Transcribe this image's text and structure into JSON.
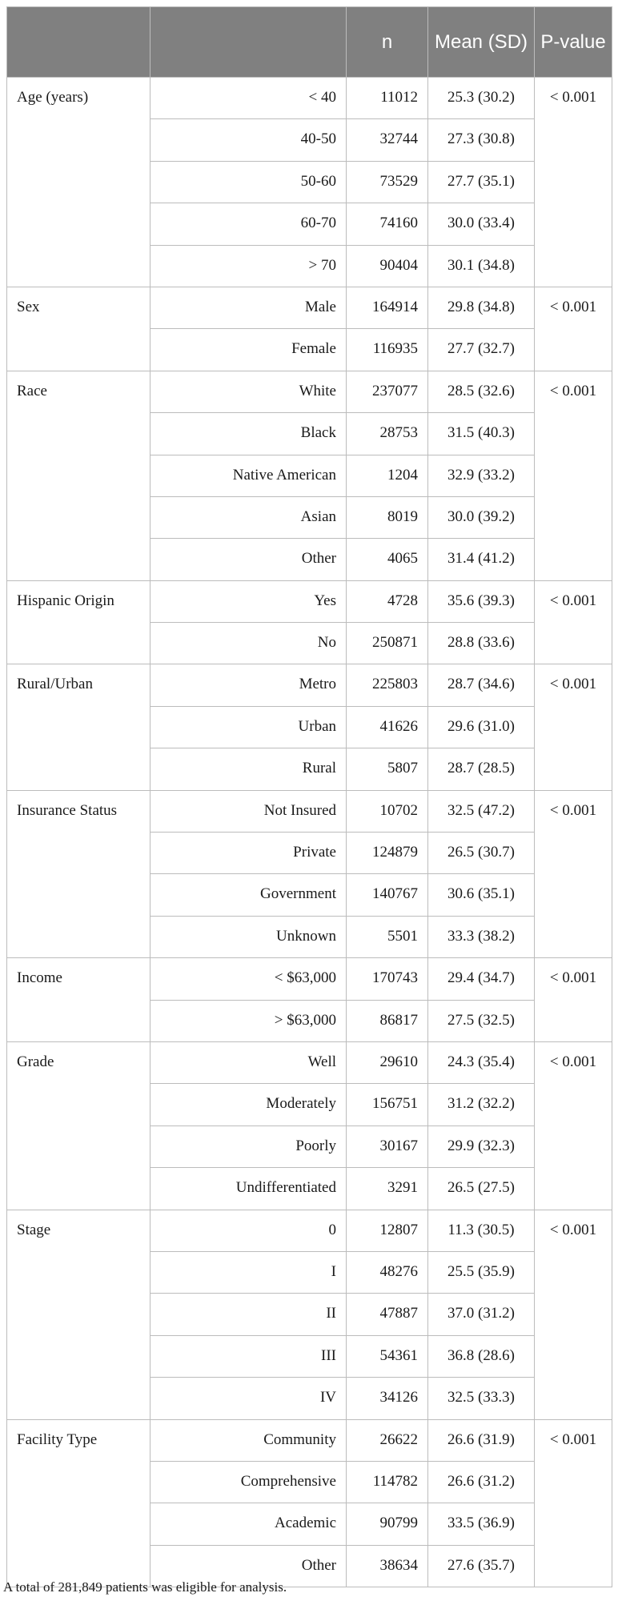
{
  "table": {
    "headers": [
      "",
      "",
      "n",
      "Mean (SD)",
      "P-value"
    ],
    "groups": [
      {
        "name": "Age (years)",
        "p": "< 0.001",
        "rows": [
          {
            "level": "< 40",
            "n": "11012",
            "mean": "25.3 (30.2)"
          },
          {
            "level": "40-50",
            "n": "32744",
            "mean": "27.3 (30.8)"
          },
          {
            "level": "50-60",
            "n": "73529",
            "mean": "27.7 (35.1)"
          },
          {
            "level": "60-70",
            "n": "74160",
            "mean": "30.0 (33.4)"
          },
          {
            "level": "> 70",
            "n": "90404",
            "mean": "30.1 (34.8)"
          }
        ]
      },
      {
        "name": "Sex",
        "p": "< 0.001",
        "rows": [
          {
            "level": "Male",
            "n": "164914",
            "mean": "29.8 (34.8)"
          },
          {
            "level": "Female",
            "n": "116935",
            "mean": "27.7 (32.7)"
          }
        ]
      },
      {
        "name": "Race",
        "p": "< 0.001",
        "rows": [
          {
            "level": "White",
            "n": "237077",
            "mean": "28.5 (32.6)"
          },
          {
            "level": "Black",
            "n": "28753",
            "mean": "31.5 (40.3)"
          },
          {
            "level": "Native American",
            "n": "1204",
            "mean": "32.9 (33.2)"
          },
          {
            "level": "Asian",
            "n": "8019",
            "mean": "30.0 (39.2)"
          },
          {
            "level": "Other",
            "n": "4065",
            "mean": "31.4 (41.2)"
          }
        ]
      },
      {
        "name": "Hispanic Origin",
        "p": "< 0.001",
        "rows": [
          {
            "level": "Yes",
            "n": "4728",
            "mean": "35.6 (39.3)"
          },
          {
            "level": "No",
            "n": "250871",
            "mean": "28.8 (33.6)"
          }
        ]
      },
      {
        "name": "Rural/Urban",
        "p": "< 0.001",
        "rows": [
          {
            "level": "Metro",
            "n": "225803",
            "mean": "28.7 (34.6)"
          },
          {
            "level": "Urban",
            "n": "41626",
            "mean": "29.6 (31.0)"
          },
          {
            "level": "Rural",
            "n": "5807",
            "mean": "28.7 (28.5)"
          }
        ]
      },
      {
        "name": "Insurance Status",
        "p": "< 0.001",
        "rows": [
          {
            "level": "Not Insured",
            "n": "10702",
            "mean": "32.5 (47.2)"
          },
          {
            "level": "Private",
            "n": "124879",
            "mean": "26.5 (30.7)"
          },
          {
            "level": "Government",
            "n": "140767",
            "mean": "30.6 (35.1)"
          },
          {
            "level": "Unknown",
            "n": "5501",
            "mean": "33.3 (38.2)"
          }
        ]
      },
      {
        "name": "Income",
        "p": "< 0.001",
        "rows": [
          {
            "level": "< $63,000",
            "n": "170743",
            "mean": "29.4 (34.7)"
          },
          {
            "level": "> $63,000",
            "n": "86817",
            "mean": "27.5 (32.5)"
          }
        ]
      },
      {
        "name": "Grade",
        "p": "< 0.001",
        "rows": [
          {
            "level": "Well",
            "n": "29610",
            "mean": "24.3 (35.4)"
          },
          {
            "level": "Moderately",
            "n": "156751",
            "mean": "31.2 (32.2)"
          },
          {
            "level": "Poorly",
            "n": "30167",
            "mean": "29.9 (32.3)"
          },
          {
            "level": "Undifferentiated",
            "n": "3291",
            "mean": "26.5 (27.5)"
          }
        ]
      },
      {
        "name": "Stage",
        "p": "< 0.001",
        "rows": [
          {
            "level": "0",
            "n": "12807",
            "mean": "11.3 (30.5)"
          },
          {
            "level": "I",
            "n": "48276",
            "mean": "25.5 (35.9)"
          },
          {
            "level": "II",
            "n": "47887",
            "mean": "37.0 (31.2)"
          },
          {
            "level": "III",
            "n": "54361",
            "mean": "36.8 (28.6)"
          },
          {
            "level": "IV",
            "n": "34126",
            "mean": "32.5 (33.3)"
          }
        ]
      },
      {
        "name": "Facility Type",
        "p": "< 0.001",
        "rows": [
          {
            "level": "Community",
            "n": "26622",
            "mean": "26.6 (31.9)"
          },
          {
            "level": "Comprehensive",
            "n": "114782",
            "mean": "26.6 (31.2)"
          },
          {
            "level": "Academic",
            "n": "90799",
            "mean": "33.5 (36.9)"
          },
          {
            "level": "Other",
            "n": "38634",
            "mean": "27.6 (35.7)"
          }
        ]
      }
    ]
  },
  "footnote": "A total of 281,849 patients was eligible for analysis.",
  "colors": {
    "header_background": "#808080",
    "header_text": "#ffffff",
    "border": "#bcbcbc"
  }
}
